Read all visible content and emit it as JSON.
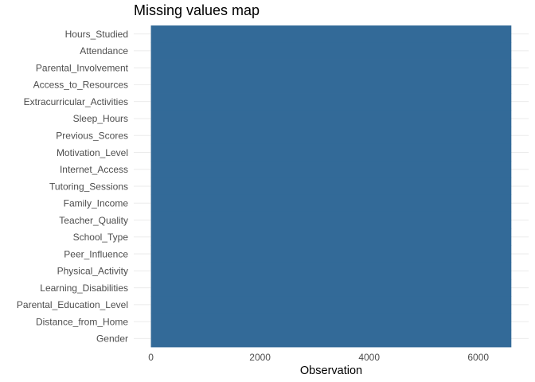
{
  "chart_data": {
    "type": "heatmap",
    "title": "Missing values map",
    "xlabel": "Observation",
    "ylabel": "",
    "variables": [
      "Hours_Studied",
      "Attendance",
      "Parental_Involvement",
      "Access_to_Resources",
      "Extracurricular_Activities",
      "Sleep_Hours",
      "Previous_Scores",
      "Motivation_Level",
      "Internet_Access",
      "Tutoring_Sessions",
      "Family_Income",
      "Teacher_Quality",
      "School_Type",
      "Peer_Influence",
      "Physical_Activity",
      "Learning_Disabilities",
      "Parental_Education_Level",
      "Distance_from_Home",
      "Gender"
    ],
    "observations": 6607,
    "xlim": [
      0,
      6607
    ],
    "xticks": [
      0,
      2000,
      4000,
      6000
    ],
    "fill_color": "#336a98",
    "grid": true
  }
}
